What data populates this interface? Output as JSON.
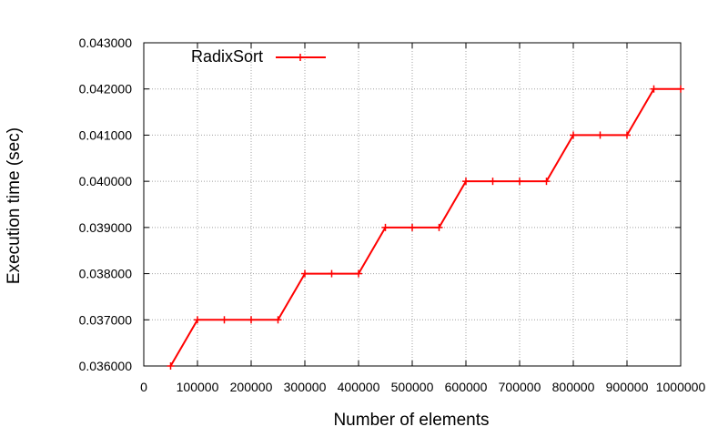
{
  "chart_data": {
    "type": "line",
    "xlabel": "Number of elements",
    "ylabel": "Execution time (sec)",
    "xlim": [
      0,
      1000000
    ],
    "ylim": [
      0.036,
      0.043
    ],
    "x_ticks": [
      0,
      100000,
      200000,
      300000,
      400000,
      500000,
      600000,
      700000,
      800000,
      900000,
      1000000
    ],
    "x_tick_labels": [
      "0",
      "100000",
      "200000",
      "300000",
      "400000",
      "500000",
      "600000",
      "700000",
      "800000",
      "900000",
      "1000000"
    ],
    "y_ticks": [
      0.036,
      0.037,
      0.038,
      0.039,
      0.04,
      0.041,
      0.042,
      0.043
    ],
    "y_tick_labels": [
      "0.036000",
      "0.037000",
      "0.038000",
      "0.039000",
      "0.040000",
      "0.041000",
      "0.042000",
      "0.043000"
    ],
    "grid": true,
    "legend_position": "top-left",
    "series": [
      {
        "name": "RadixSort",
        "color": "#ff0000",
        "marker": "plus",
        "x": [
          50000,
          100000,
          150000,
          200000,
          250000,
          300000,
          350000,
          400000,
          450000,
          500000,
          550000,
          600000,
          650000,
          700000,
          750000,
          800000,
          850000,
          900000,
          950000,
          1000000
        ],
        "y": [
          0.036,
          0.037,
          0.037,
          0.037,
          0.037,
          0.038,
          0.038,
          0.038,
          0.039,
          0.039,
          0.039,
          0.04,
          0.04,
          0.04,
          0.04,
          0.041,
          0.041,
          0.041,
          0.042,
          0.042
        ]
      }
    ]
  }
}
